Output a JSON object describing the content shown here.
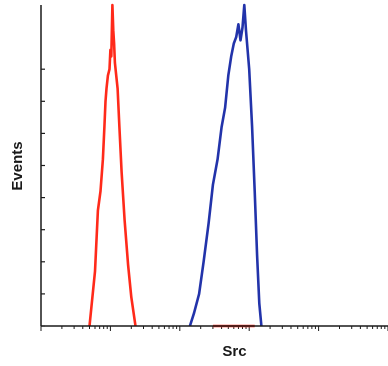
{
  "chart_data": {
    "type": "line",
    "title": "",
    "xlabel": "Src",
    "ylabel": "Events",
    "x_scale": "log",
    "xlim": [
      0.1,
      10000
    ],
    "ylim": [
      0,
      100
    ],
    "grid": false,
    "legend": "none",
    "x_decade_ticks": [
      1,
      10,
      100,
      1000,
      10000
    ],
    "y_ticks": [
      0,
      10,
      20,
      30,
      40,
      50,
      60,
      70,
      80
    ],
    "series": [
      {
        "color": "#ff2a1a",
        "x": [
          0.5,
          0.6,
          0.66,
          0.72,
          0.78,
          0.82,
          0.85,
          0.88,
          0.92,
          0.97,
          1.0,
          1.03,
          1.07,
          1.1,
          1.13,
          1.16,
          1.2,
          1.27,
          1.35,
          1.45,
          1.6,
          1.8,
          2.0,
          2.3
        ],
        "y": [
          0,
          17,
          36,
          42,
          52,
          62,
          70,
          74,
          78,
          80,
          86,
          84,
          100,
          92,
          88,
          82,
          79,
          74,
          62,
          48,
          33,
          19,
          9,
          0
        ]
      },
      {
        "color": "#2233aa",
        "x": [
          14,
          16,
          19,
          22,
          26,
          30,
          35,
          40,
          45,
          50,
          55,
          60,
          65,
          70,
          75,
          80,
          85,
          90,
          100,
          110,
          120,
          130,
          140,
          150
        ],
        "y": [
          0,
          4,
          10,
          20,
          32,
          44,
          52,
          62,
          68,
          78,
          84,
          88,
          90,
          94,
          89,
          93,
          100,
          92,
          80,
          62,
          42,
          22,
          7,
          0
        ]
      },
      {
        "color": "#ff2a1a",
        "x": [
          30,
          120
        ],
        "y": [
          0,
          0
        ]
      }
    ]
  }
}
